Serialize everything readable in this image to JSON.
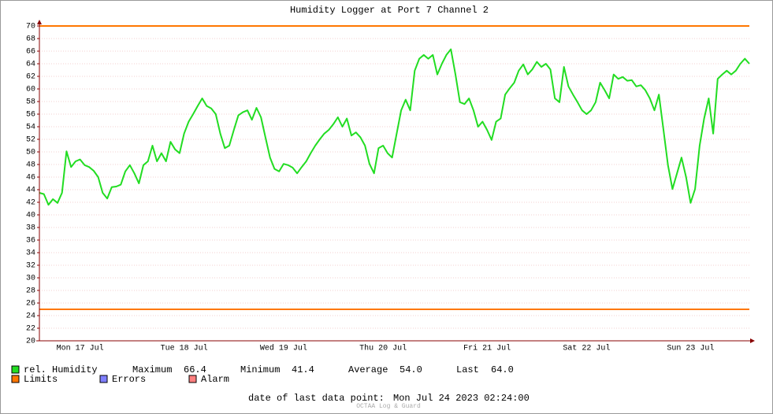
{
  "chart_data": {
    "type": "line",
    "title": "Humidity Logger at Port 7 Channel 2",
    "categories": [
      null,
      null,
      null,
      null,
      null,
      null,
      null,
      null,
      null,
      "Mon 17 Jul",
      null,
      null,
      null,
      null,
      null,
      null,
      null,
      null,
      null,
      null,
      null,
      null,
      null,
      null,
      null,
      null,
      null,
      null,
      null,
      null,
      null,
      null,
      "Tue 18 Jul",
      null,
      null,
      null,
      null,
      null,
      null,
      null,
      null,
      null,
      null,
      null,
      null,
      null,
      null,
      null,
      null,
      null,
      null,
      null,
      null,
      null,
      "Wed 19 Jul",
      null,
      null,
      null,
      null,
      null,
      null,
      null,
      null,
      null,
      null,
      null,
      null,
      null,
      null,
      null,
      null,
      null,
      null,
      null,
      null,
      null,
      "Thu 20 Jul",
      null,
      null,
      null,
      null,
      null,
      null,
      null,
      null,
      null,
      null,
      null,
      null,
      null,
      null,
      null,
      null,
      null,
      null,
      null,
      null,
      null,
      null,
      "Fri 21 Jul",
      null,
      null,
      null,
      null,
      null,
      null,
      null,
      null,
      null,
      null,
      null,
      null,
      null,
      null,
      null,
      null,
      null,
      null,
      null,
      null,
      null,
      "Sat 22 Jul",
      null,
      null,
      null,
      null,
      null,
      null,
      null,
      null,
      null,
      null,
      null,
      null,
      null,
      null,
      null,
      null,
      null,
      null,
      null,
      null,
      null,
      null,
      "Sun 23 Jul",
      null,
      null,
      null,
      null,
      null,
      null,
      null,
      null,
      null,
      null,
      null,
      null,
      null
    ],
    "series": [
      {
        "name": "rel. Humidity",
        "color": "#22dd22",
        "values": [
          43.5,
          43.3,
          41.6,
          42.5,
          41.9,
          43.5,
          50.1,
          47.6,
          48.5,
          48.8,
          47.9,
          47.6,
          47,
          46,
          43.5,
          42.6,
          44.4,
          44.5,
          44.8,
          46.9,
          47.9,
          46.6,
          45,
          47.9,
          48.5,
          51,
          48.5,
          49.8,
          48.5,
          51.6,
          50.4,
          49.8,
          52.9,
          54.8,
          56,
          57.3,
          58.5,
          57.3,
          56.9,
          56,
          52.9,
          50.6,
          51,
          53.5,
          55.8,
          56.3,
          56.6,
          55.1,
          57,
          55.5,
          52.3,
          49.1,
          47.3,
          46.9,
          48.1,
          47.9,
          47.5,
          46.6,
          47.6,
          48.5,
          49.8,
          51,
          52,
          52.9,
          53.5,
          54.4,
          55.5,
          54,
          55.3,
          52.6,
          53.1,
          52.3,
          51,
          48.1,
          46.6,
          50.6,
          51,
          49.8,
          49.1,
          52.9,
          56.6,
          58.3,
          56.6,
          62.9,
          64.8,
          65.4,
          64.8,
          65.4,
          62.3,
          64,
          65.4,
          66.3,
          62.3,
          57.9,
          57.6,
          58.5,
          56.6,
          54,
          54.8,
          53.5,
          51.9,
          54.8,
          55.3,
          59.1,
          60.1,
          61,
          62.9,
          63.9,
          62.3,
          63.1,
          64.3,
          63.5,
          64,
          63.1,
          58.5,
          57.9,
          63.5,
          60.4,
          59.1,
          57.9,
          56.6,
          56,
          56.6,
          57.9,
          61,
          59.8,
          58.5,
          62.3,
          61.6,
          61.9,
          61.3,
          61.4,
          60.4,
          60.6,
          59.8,
          58.5,
          56.6,
          59.1,
          53.5,
          47.9,
          44.1,
          46.6,
          49.1,
          46,
          41.9,
          44.1,
          51,
          55.3,
          58.5,
          52.9,
          61.6,
          62.3,
          62.9,
          62.3,
          62.9,
          64,
          64.8,
          64
        ]
      }
    ],
    "limits": {
      "name": "Limits",
      "color": "#ff7700",
      "values": [
        70,
        25
      ]
    },
    "legend_extra": [
      {
        "name": "Errors",
        "color": "#7f7fff"
      },
      {
        "name": "Alarm",
        "color": "#ff7f7f"
      }
    ],
    "stats": {
      "maximum_label": "Maximum",
      "maximum": 66.4,
      "minimum_label": "Minimum",
      "minimum": 41.4,
      "average_label": "Average",
      "average": {
        "value": 54,
        "label": "54.0"
      },
      "last_label": "Last",
      "last": {
        "value": 64,
        "label": "64.0"
      }
    },
    "footer": {
      "label": "date of last data point:",
      "value": "Mon Jul 24 2023 02:24:00",
      "watermark": "OCTAA Log & Guard"
    },
    "ylim": [
      20,
      70
    ],
    "yticks": [
      20,
      22,
      24,
      26,
      28,
      30,
      32,
      34,
      36,
      38,
      40,
      42,
      44,
      46,
      48,
      50,
      52,
      54,
      56,
      58,
      60,
      62,
      64,
      66,
      68,
      70
    ],
    "grid": true
  }
}
